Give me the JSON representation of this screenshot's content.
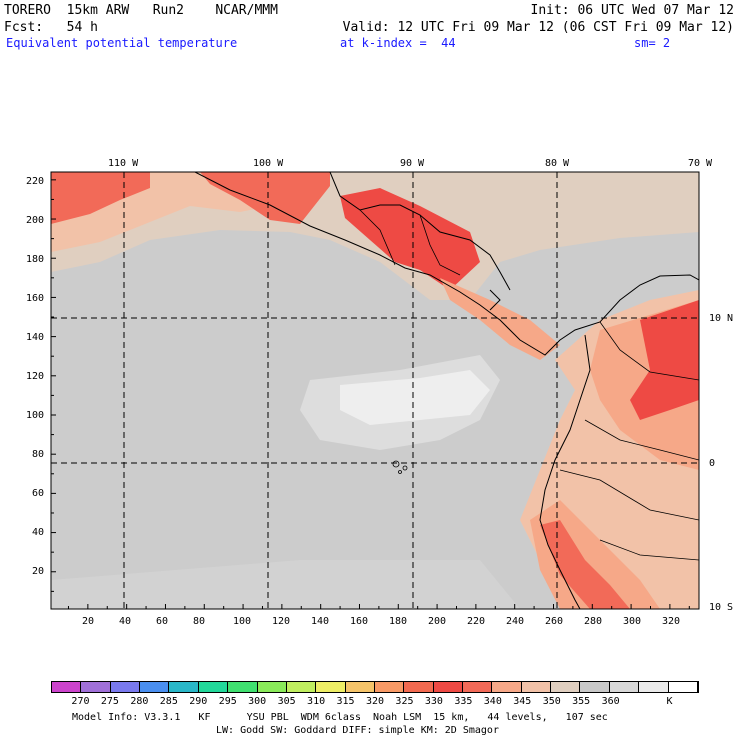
{
  "header": {
    "line1_left": "TORERO  15km ARW   Run2    NCAR/MMM",
    "line1_right": "Init: 06 UTC Wed 07 Mar 12",
    "line2_left": "Fcst:   54 h",
    "line2_right": "Valid: 12 UTC Fri 09 Mar 12 (06 CST Fri 09 Mar 12)",
    "line3_field": "Equivalent potential temperature",
    "line3_level": "at k-index =  44",
    "line3_smooth": "sm= 2"
  },
  "map": {
    "lon_labels": [
      "110 W",
      "100 W",
      "90 W",
      "80 W",
      "70 W"
    ],
    "lat_labels": [
      "10 N",
      "0",
      "10 S"
    ],
    "x_ticks": [
      "20",
      "40",
      "60",
      "80",
      "100",
      "120",
      "140",
      "160",
      "180",
      "200",
      "220",
      "240",
      "260",
      "280",
      "300",
      "320"
    ],
    "y_ticks": [
      "20",
      "40",
      "60",
      "80",
      "100",
      "120",
      "140",
      "160",
      "180",
      "200",
      "220"
    ],
    "x_grid_range": [
      1,
      335
    ],
    "y_grid_range": [
      1,
      224
    ],
    "lon_grid_x": [
      38,
      112,
      186,
      260,
      334
    ],
    "lat_grid_y": [
      151,
      76
    ]
  },
  "colorbar": {
    "colors": [
      "#cc44cc",
      "#a070d8",
      "#7a7aee",
      "#4a8ff0",
      "#2ab7c8",
      "#22d89a",
      "#40e070",
      "#8aea5a",
      "#c0ee60",
      "#eeee66",
      "#f5c46a",
      "#f89a66",
      "#f26a50",
      "#ee4a44",
      "#f26a58",
      "#f6a888",
      "#f2c2a8",
      "#e0cfc0",
      "#c8c8c8",
      "#d8d8d8",
      "#eaeaea",
      "#ffffff"
    ],
    "labels": [
      "270",
      "275",
      "280",
      "285",
      "290",
      "295",
      "300",
      "305",
      "310",
      "315",
      "320",
      "325",
      "330",
      "335",
      "340",
      "345",
      "350",
      "355",
      "360",
      "K"
    ]
  },
  "footer": {
    "line1": "Model Info: V3.3.1   KF      YSU PBL  WDM 6class  Noah LSM  15 km,   44 levels,   107 sec",
    "line2": "LW: Godd SW: Goddard DIFF: simple KM: 2D Smagor"
  }
}
